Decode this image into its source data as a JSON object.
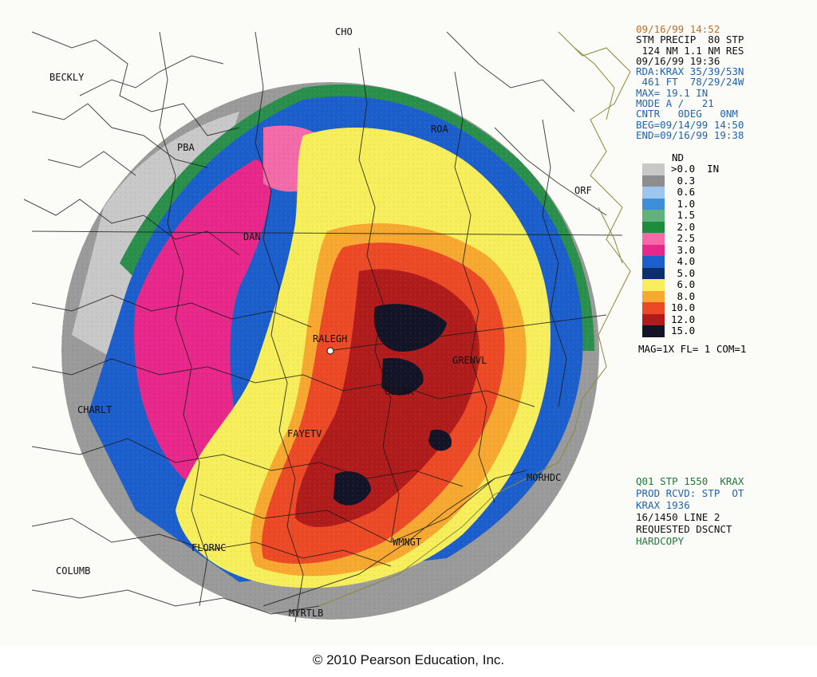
{
  "header_lines": [
    {
      "text": "09/16/99 14:52",
      "color": "#c0702a"
    },
    {
      "text": "STM PRECIP  80 STP",
      "color": "#111111"
    },
    {
      "text": " 124 NM 1.1 NM RES",
      "color": "#111111"
    },
    {
      "text": "09/16/99 19:36",
      "color": "#111111"
    },
    {
      "text": "RDA:KRAX 35/39/53N",
      "color": "#1f64b4"
    },
    {
      "text": " 461 FT  78/29/24W",
      "color": "#1f64b4"
    },
    {
      "text": "MAX= 19.1 IN",
      "color": "#1f64b4"
    },
    {
      "text": "MODE A /   21",
      "color": "#1f64b4"
    },
    {
      "text": "CNTR   0DEG   0NM",
      "color": "#1f64b4"
    },
    {
      "text": "BEG=09/14/99 14:50",
      "color": "#1f64b4"
    },
    {
      "text": "END=09/16/99 19:38",
      "color": "#1f64b4"
    }
  ],
  "legend": {
    "nd_label": "ND",
    "entries": [
      {
        "label": ">0.0  IN",
        "color": "#c8c8c8"
      },
      {
        "label": " 0.3",
        "color": "#8e8e8e"
      },
      {
        "label": " 0.6",
        "color": "#9cc6ee"
      },
      {
        "label": " 1.0",
        "color": "#3c8fd8"
      },
      {
        "label": " 1.5",
        "color": "#62b07a"
      },
      {
        "label": " 2.0",
        "color": "#1e8c3c"
      },
      {
        "label": " 2.5",
        "color": "#f26aa8"
      },
      {
        "label": " 3.0",
        "color": "#e8278a"
      },
      {
        "label": " 4.0",
        "color": "#1c5fcc"
      },
      {
        "label": " 5.0",
        "color": "#0d2d6e"
      },
      {
        "label": " 6.0",
        "color": "#f6ee5a"
      },
      {
        "label": " 8.0",
        "color": "#f6a830"
      },
      {
        "label": "10.0",
        "color": "#ec4a26"
      },
      {
        "label": "12.0",
        "color": "#b01c1c"
      },
      {
        "label": "15.0",
        "color": "#141428"
      }
    ],
    "footer": "MAG=1X FL= 1 COM=1"
  },
  "status_lines": [
    {
      "text": "Q01 STP 1550  KRAX",
      "color": "#1e7a3a"
    },
    {
      "text": "PROD RCVD: STP  OT",
      "color": "#1f64b4"
    },
    {
      "text": "KRAX 1936",
      "color": "#1f64b4"
    },
    {
      "text": "16/1450 LINE 2",
      "color": "#111111"
    },
    {
      "text": "REQUESTED DSCNCT",
      "color": "#111111"
    },
    {
      "text": "HARDCOPY",
      "color": "#1e7a3a"
    }
  ],
  "map_labels": {
    "beckly": "BECKLY",
    "cho": "CHO",
    "roa": "ROA",
    "pba": "PBA",
    "orf": "ORF",
    "dan": "DAN",
    "ralegh": "RALEGH",
    "grenvl": "GRENVL",
    "glsbr": "GLSBR",
    "charlt": "CHARLT",
    "fayetv": "FAYETV",
    "morhdc": "MORHDC",
    "florncs": "FLORNC",
    "wmngt": "WMNGT",
    "columb": "COLUMB",
    "myrtlb": "MYRTLB"
  },
  "copyright": "© 2010 Pearson Education, Inc."
}
